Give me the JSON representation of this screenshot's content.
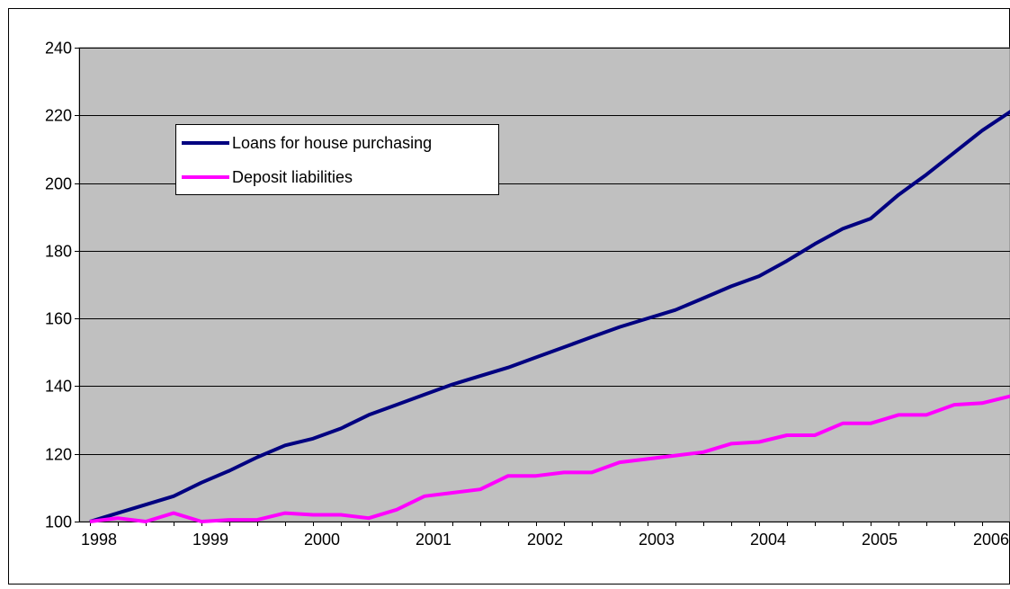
{
  "chart_data": {
    "type": "line",
    "title": "",
    "xlabel": "",
    "ylabel": "",
    "ylim": [
      100,
      240
    ],
    "y_ticks": [
      100,
      120,
      140,
      160,
      180,
      200,
      220,
      240
    ],
    "x_year_labels": [
      "1998",
      "1999",
      "2000",
      "2001",
      "2002",
      "2003",
      "2004",
      "2005",
      "2006"
    ],
    "grid": true,
    "legend_position": "upper-left inside plot",
    "x": [
      "1998Q1",
      "1998Q2",
      "1998Q3",
      "1998Q4",
      "1999Q1",
      "1999Q2",
      "1999Q3",
      "1999Q4",
      "2000Q1",
      "2000Q2",
      "2000Q3",
      "2000Q4",
      "2001Q1",
      "2001Q2",
      "2001Q3",
      "2001Q4",
      "2002Q1",
      "2002Q2",
      "2002Q3",
      "2002Q4",
      "2003Q1",
      "2003Q2",
      "2003Q3",
      "2003Q4",
      "2004Q1",
      "2004Q2",
      "2004Q3",
      "2004Q4",
      "2005Q1",
      "2005Q2",
      "2005Q3",
      "2005Q4",
      "2006Q1",
      "2006Q2",
      "2006Q3"
    ],
    "series": [
      {
        "name": "Loans for house purchasing",
        "color": "#000080",
        "values": [
          100,
          102.5,
          105,
          107.5,
          111.5,
          115,
          119,
          122.5,
          124.5,
          127.5,
          131.5,
          134.5,
          137.5,
          140.5,
          143,
          145.5,
          148.5,
          151.5,
          154.5,
          157.5,
          160,
          162.5,
          166,
          169.5,
          172.5,
          177,
          182,
          186.5,
          189.5,
          196.5,
          202.5,
          209,
          215.5,
          221,
          226
        ]
      },
      {
        "name": "Deposit liabilities",
        "color": "#ff00ff",
        "values": [
          100,
          101,
          100,
          102.5,
          100,
          100.5,
          100.5,
          102.5,
          102,
          102,
          101,
          103.5,
          107.5,
          108.5,
          109.5,
          113.5,
          113.5,
          114.5,
          114.5,
          117.5,
          118.5,
          119.5,
          120.5,
          123,
          123.5,
          125.5,
          125.5,
          129,
          129,
          131.5,
          131.5,
          134.5,
          135,
          137,
          137.5
        ]
      }
    ]
  }
}
